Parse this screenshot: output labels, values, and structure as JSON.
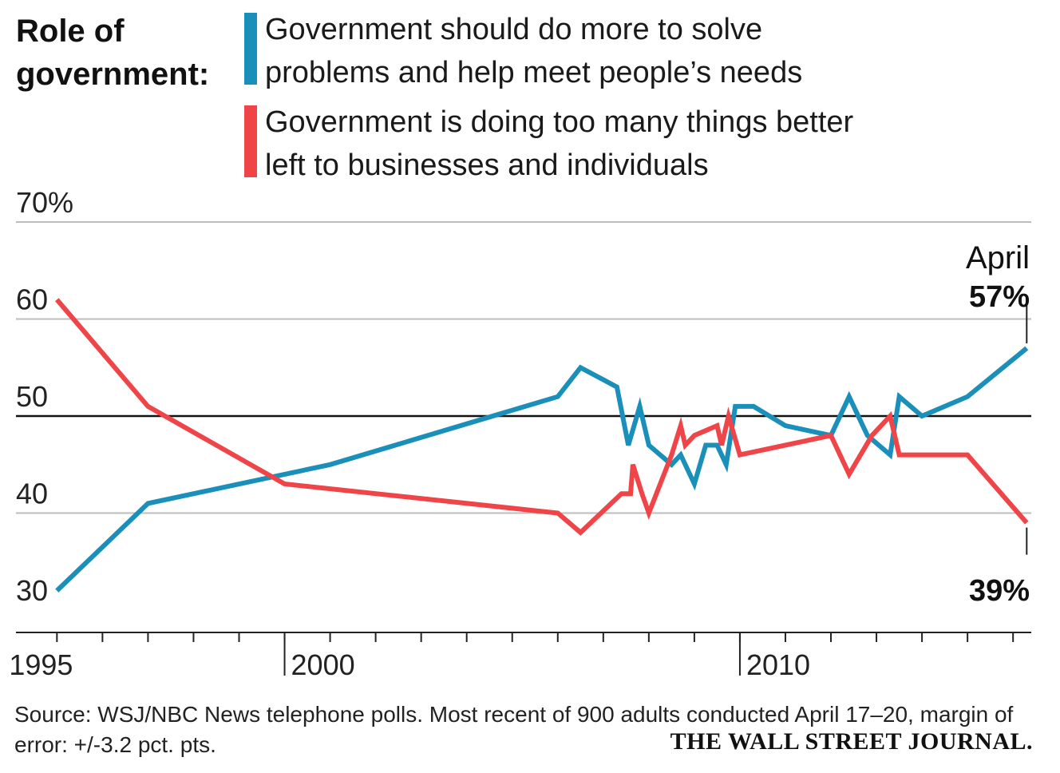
{
  "title": "Role of government:",
  "legend": [
    {
      "label": "Government should do more to solve problems and help meet people’s needs",
      "color": "#1a8fba"
    },
    {
      "label": "Government is doing too many things better left to businesses and individuals",
      "color": "#ef4548"
    }
  ],
  "footer": {
    "source": "Source: WSJ/NBC News telephone polls. Most recent of 900 adults conducted April 17–20, margin of error: +/-3.2 pct. pts.",
    "brand": "THE WALL STREET JOURNAL."
  },
  "chart_data": {
    "type": "line",
    "title": "Role of government:",
    "xlabel": "",
    "ylabel": "",
    "xlim": [
      1994.1,
      2016.4
    ],
    "ylim": [
      29,
      70
    ],
    "y_ticks": [
      {
        "value": 70,
        "label": "70%"
      },
      {
        "value": 60,
        "label": "60"
      },
      {
        "value": 50,
        "label": "50"
      },
      {
        "value": 40,
        "label": "40"
      },
      {
        "value": 30,
        "label": "30"
      }
    ],
    "x_tick_years": [
      1995,
      2000,
      2010
    ],
    "x_tick_labels": [
      "1995",
      "2000",
      "2010"
    ],
    "reference_line": 50,
    "series": [
      {
        "name": "Government should do more to solve problems and help meet people’s needs",
        "color": "#1a8fba",
        "x": [
          1995.0,
          1997.0,
          2001.0,
          2006.0,
          2006.5,
          2007.3,
          2007.55,
          2007.8,
          2008.0,
          2008.5,
          2008.7,
          2009.0,
          2009.25,
          2009.5,
          2009.7,
          2009.9,
          2010.3,
          2011.0,
          2012.0,
          2012.4,
          2012.8,
          2013.3,
          2013.5,
          2014.0,
          2015.0,
          2016.3
        ],
        "values": [
          32,
          41,
          45,
          52,
          55,
          53,
          47,
          51,
          47,
          45,
          46,
          43,
          47,
          47,
          45,
          51,
          51,
          49,
          48,
          52,
          48,
          46,
          52,
          50,
          52,
          57
        ]
      },
      {
        "name": "Government is doing too many things better left to businesses and individuals",
        "color": "#ef4548",
        "x": [
          1995.0,
          1997.0,
          2000.0,
          2006.0,
          2006.5,
          2007.4,
          2007.6,
          2007.65,
          2007.85,
          2008.0,
          2008.5,
          2008.7,
          2008.8,
          2009.0,
          2009.5,
          2009.6,
          2009.75,
          2010.0,
          2012.0,
          2012.4,
          2012.9,
          2013.3,
          2013.5,
          2014.0,
          2015.0,
          2016.3
        ],
        "values": [
          62,
          51,
          43,
          40,
          38,
          42,
          42,
          45,
          42,
          40,
          46,
          49,
          47,
          48,
          49,
          47,
          50,
          46,
          48,
          44,
          48,
          50,
          46,
          46,
          46,
          39
        ]
      }
    ],
    "annotations": [
      {
        "text": "April",
        "series": 0
      },
      {
        "text": "57%",
        "series": 0
      },
      {
        "text": "39%",
        "series": 1
      }
    ]
  }
}
